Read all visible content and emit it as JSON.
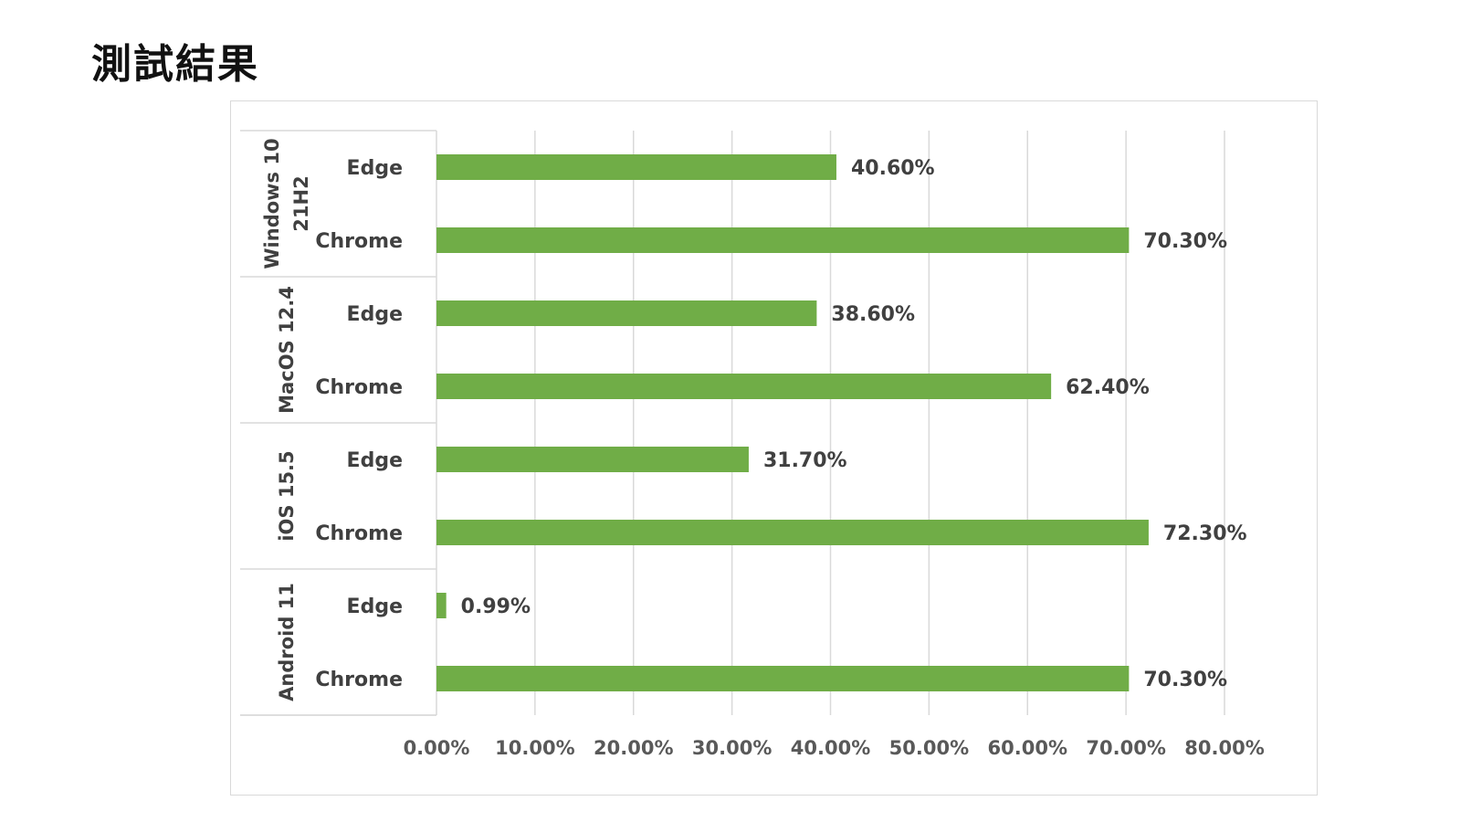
{
  "page": {
    "title": "測試結果"
  },
  "chart_data": {
    "type": "bar",
    "orientation": "horizontal",
    "title": "",
    "xlabel": "",
    "ylabel": "",
    "xlim": [
      0,
      0.8
    ],
    "x_ticks": [
      0,
      0.1,
      0.2,
      0.3,
      0.4,
      0.5,
      0.6,
      0.7,
      0.8
    ],
    "x_tick_labels": [
      "0.00%",
      "10.00%",
      "20.00%",
      "30.00%",
      "40.00%",
      "50.00%",
      "60.00%",
      "70.00%",
      "80.00%"
    ],
    "grid": "vertical",
    "legend": "none",
    "bar_color": "#70ad47",
    "groups": [
      {
        "label": "Windows 10 21H2",
        "label_lines": [
          "Windows 10",
          "21H2"
        ],
        "bars": [
          {
            "category": "Edge",
            "value": 0.406,
            "label": "40.60%"
          },
          {
            "category": "Chrome",
            "value": 0.703,
            "label": "70.30%"
          }
        ]
      },
      {
        "label": "MacOS 12.4",
        "label_lines": [
          "MacOS 12.4"
        ],
        "bars": [
          {
            "category": "Edge",
            "value": 0.386,
            "label": "38.60%"
          },
          {
            "category": "Chrome",
            "value": 0.624,
            "label": "62.40%"
          }
        ]
      },
      {
        "label": "iOS 15.5",
        "label_lines": [
          "iOS 15.5"
        ],
        "bars": [
          {
            "category": "Edge",
            "value": 0.317,
            "label": "31.70%"
          },
          {
            "category": "Chrome",
            "value": 0.723,
            "label": "72.30%"
          }
        ]
      },
      {
        "label": "Android 11",
        "label_lines": [
          "Android 11"
        ],
        "bars": [
          {
            "category": "Edge",
            "value": 0.0099,
            "label": "0.99%"
          },
          {
            "category": "Chrome",
            "value": 0.703,
            "label": "70.30%"
          }
        ]
      }
    ]
  }
}
